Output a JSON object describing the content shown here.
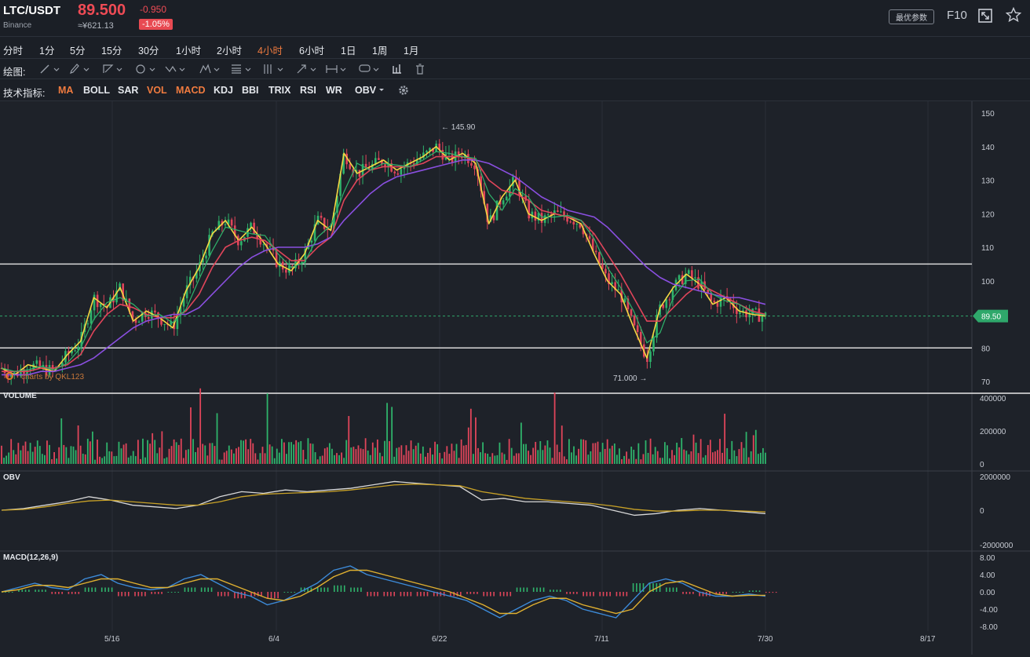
{
  "header": {
    "symbol": "LTC/USDT",
    "exchange": "Binance",
    "price": "89.500",
    "cny_price": "≈¥621.13",
    "change": "-0.950",
    "change_pct": "-1.05%",
    "settings_label": "最优参数",
    "f10_label": "F10"
  },
  "timeframes": [
    "分时",
    "1分",
    "5分",
    "15分",
    "30分",
    "1小时",
    "2小时",
    "4小时",
    "6小时",
    "1日",
    "1周",
    "1月"
  ],
  "active_timeframe": "4小时",
  "drawing": {
    "label": "绘图:",
    "tools": [
      "line-tool-icon",
      "pencil-tool-icon",
      "polyline-tool-icon",
      "circle-tool-icon",
      "wave-tool-icon",
      "pattern-tool-icon",
      "fibonacci-tool-icon",
      "channel-tool-icon",
      "arrow-tool-icon",
      "measure-tool-icon",
      "comment-tool-icon",
      "bar-style-icon",
      "trash-icon"
    ]
  },
  "indicators": {
    "label": "技术指标:",
    "items": [
      "MA",
      "BOLL",
      "SAR",
      "VOL",
      "MACD",
      "KDJ",
      "BBI",
      "TRIX",
      "RSI",
      "WR",
      "OBV"
    ],
    "active": [
      "MA",
      "VOL",
      "MACD"
    ]
  },
  "chart_data": {
    "type": "line",
    "x_labels": [
      "5/16",
      "6/4",
      "6/22",
      "7/11",
      "7/30",
      "8/17"
    ],
    "price_axis": [
      "150",
      "140",
      "130",
      "120",
      "110",
      "100",
      "90",
      "80",
      "70"
    ],
    "y_range": [
      70,
      150
    ],
    "current_price_label": "89.50",
    "high_label": "← 145.90",
    "low_label": "71.000 →",
    "watermark": "charts by QKL123",
    "horizontal_lines": [
      105,
      80
    ],
    "series": [
      {
        "name": "close",
        "color": "#f5d742",
        "values": [
          74,
          72,
          75,
          74,
          73,
          78,
          82,
          95,
          92,
          98,
          88,
          91,
          89,
          86,
          97,
          104,
          114,
          118,
          112,
          116,
          111,
          105,
          103,
          108,
          118,
          115,
          138,
          132,
          134,
          136,
          133,
          135,
          137,
          140,
          136,
          138,
          135,
          117,
          125,
          130,
          120,
          118,
          120,
          119,
          117,
          108,
          100,
          96,
          86,
          77,
          92,
          98,
          102,
          99,
          93,
          95,
          91,
          90,
          89.5
        ]
      },
      {
        "name": "ma_mid",
        "color": "#e0455a",
        "values": [
          73,
          73,
          73,
          74,
          74,
          75,
          78,
          85,
          90,
          93,
          92,
          90,
          89,
          89,
          91,
          96,
          104,
          110,
          112,
          113,
          112,
          109,
          106,
          106,
          110,
          113,
          124,
          130,
          133,
          134,
          134,
          134,
          135,
          137,
          137,
          137,
          136,
          130,
          127,
          126,
          124,
          121,
          120,
          119,
          118,
          114,
          108,
          102,
          95,
          88,
          88,
          92,
          96,
          99,
          97,
          95,
          93,
          91,
          90
        ]
      },
      {
        "name": "ma_slow",
        "color": "#8a4fe0",
        "values": [
          72,
          72,
          72,
          73,
          73,
          74,
          75,
          77,
          80,
          83,
          86,
          88,
          89,
          90,
          90,
          92,
          96,
          100,
          104,
          107,
          109,
          110,
          110,
          110,
          111,
          113,
          118,
          122,
          126,
          129,
          131,
          132,
          133,
          134,
          135,
          136,
          136,
          135,
          133,
          131,
          128,
          125,
          123,
          121,
          120,
          119,
          116,
          112,
          108,
          104,
          101,
          99,
          98,
          97,
          96,
          95,
          95,
          94,
          93
        ]
      }
    ],
    "volume_axis": [
      "400000",
      "200000",
      "0"
    ],
    "volume_label": "VOLUME",
    "obv_axis": [
      "2000000",
      "0",
      "-2000000"
    ],
    "obv_label": "OBV",
    "obv_series": [
      {
        "name": "obv",
        "color": "#d9d9d9",
        "values": [
          0,
          0.1,
          0.3,
          0.5,
          0.8,
          0.6,
          0.3,
          0.2,
          0.1,
          0.3,
          0.8,
          1.1,
          1.0,
          1.2,
          1.1,
          1.2,
          1.3,
          1.5,
          1.7,
          1.6,
          1.5,
          1.4,
          0.6,
          0.7,
          0.5,
          0.5,
          0.4,
          0.3,
          0.0,
          -0.3,
          -0.2,
          0.0,
          0.1,
          0.0,
          -0.1,
          -0.2
        ]
      },
      {
        "name": "obv_ma",
        "color": "#c9a227",
        "values": [
          0,
          0.05,
          0.2,
          0.4,
          0.55,
          0.6,
          0.5,
          0.4,
          0.3,
          0.3,
          0.5,
          0.8,
          0.95,
          1.0,
          1.05,
          1.1,
          1.2,
          1.35,
          1.5,
          1.55,
          1.5,
          1.45,
          1.1,
          0.9,
          0.7,
          0.6,
          0.5,
          0.4,
          0.25,
          0.05,
          -0.05,
          -0.05,
          0.0,
          0.0,
          -0.05,
          -0.1
        ]
      }
    ],
    "macd_label": "MACD(12,26,9)",
    "macd_axis": [
      "8.00",
      "4.00",
      "0.00",
      "-4.00",
      "-8.00"
    ],
    "macd_series": [
      {
        "name": "dif",
        "color": "#3d8bd9",
        "values": [
          0,
          1,
          2,
          1,
          0.5,
          3,
          4,
          2,
          1,
          0.5,
          1,
          3,
          4,
          2,
          0,
          -1,
          -3,
          -2,
          0,
          2,
          5,
          6,
          4,
          3,
          2,
          1,
          0,
          -1,
          -2,
          -4,
          -6,
          -4,
          -2,
          -1,
          -2,
          -4,
          -5,
          -6,
          -2,
          2,
          3,
          2,
          0,
          -1,
          -1,
          -0.5,
          -1
        ]
      },
      {
        "name": "dea",
        "color": "#e0b030",
        "values": [
          0,
          0.5,
          1.5,
          1.5,
          1,
          2,
          3,
          3,
          2,
          1,
          1,
          2,
          3,
          3,
          1.5,
          0,
          -1.5,
          -2,
          -1,
          1,
          3.5,
          5,
          5,
          4,
          3,
          2,
          1,
          0,
          -1.5,
          -3,
          -5,
          -5,
          -3,
          -1.5,
          -1.5,
          -3,
          -4,
          -5,
          -4,
          0,
          2,
          2.5,
          1,
          -0.5,
          -1,
          -0.8,
          -0.8
        ]
      }
    ]
  }
}
